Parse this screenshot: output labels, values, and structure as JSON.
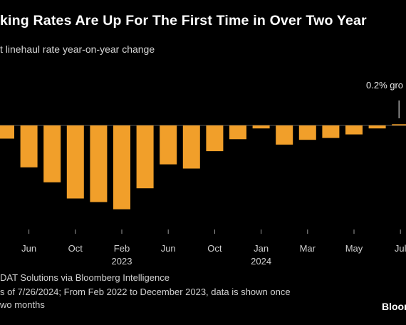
{
  "chart_data": {
    "type": "bar",
    "title": "king Rates Are Up For The First Time in Over Two Year",
    "subtitle": "t linehaul rate year-on-year change",
    "x": [
      "2022-04",
      "2022-06",
      "2022-08",
      "2022-10",
      "2022-12",
      "2023-02",
      "2023-04",
      "2023-06",
      "2023-08",
      "2023-10",
      "2023-12",
      "2024-01",
      "2024-02",
      "2024-03",
      "2024-04",
      "2024-05",
      "2024-06",
      "2024-07"
    ],
    "values": [
      -2.2,
      -7.0,
      -9.5,
      -12.2,
      -12.8,
      -14.0,
      -10.5,
      -6.5,
      -7.2,
      -4.3,
      -2.3,
      -0.5,
      -3.2,
      -2.4,
      -2.1,
      -1.5,
      -0.5,
      0.2
    ],
    "tick_labels": [
      {
        "label": "Jun",
        "year": ""
      },
      {
        "label": "Oct",
        "year": ""
      },
      {
        "label": "Feb",
        "year": "2023"
      },
      {
        "label": "Jun",
        "year": ""
      },
      {
        "label": "Oct",
        "year": ""
      },
      {
        "label": "Jan",
        "year": "2024"
      },
      {
        "label": "Mar",
        "year": ""
      },
      {
        "label": "May",
        "year": ""
      },
      {
        "label": "Jul",
        "year": ""
      }
    ],
    "annotation": "0.2% gro",
    "bar_color": "#f19f2a",
    "grid": false
  },
  "footer": {
    "source": "DAT Solutions via Bloomberg Intelligence",
    "note_line1": "s of 7/26/2024; From Feb 2022 to December 2023, data is shown once",
    "note_line2": "wo months",
    "brand": "Bloom"
  }
}
